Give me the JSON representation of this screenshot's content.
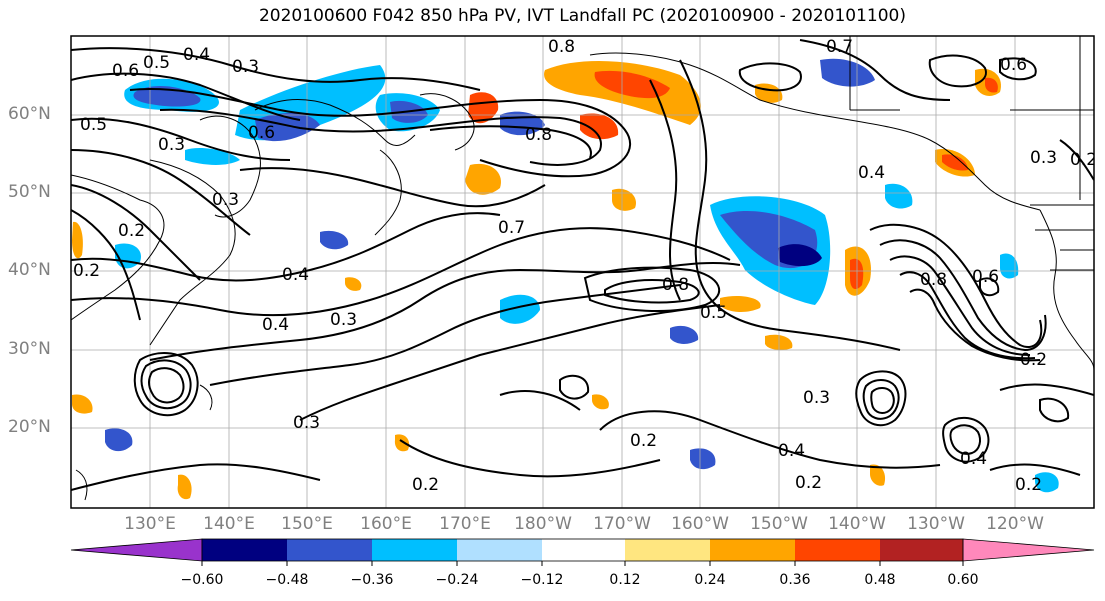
{
  "title": "2020100600 F042 850 hPa PV, IVT Landfall PC (2020100900 - 2020101100)",
  "lat_labels": [
    "60°N",
    "50°N",
    "40°N",
    "30°N",
    "20°N"
  ],
  "lon_labels": [
    "130°E",
    "140°E",
    "150°E",
    "160°E",
    "170°E",
    "180°W",
    "170°W",
    "160°W",
    "150°W",
    "140°W",
    "130°W",
    "120°W"
  ],
  "contour_labels": [
    "0.6",
    "0.5",
    "0.4",
    "0.3",
    "0.5",
    "0.3",
    "0.6",
    "0.3",
    "0.2",
    "0.2",
    "0.8",
    "0.7",
    "0.8",
    "0.7",
    "0.6",
    "0.3",
    "0.2",
    "0.4",
    "0.4",
    "0.4",
    "0.3",
    "0.8",
    "0.5",
    "0.8",
    "0.6",
    "0.2",
    "0.3",
    "0.2",
    "0.2",
    "0.3",
    "0.4",
    "0.2",
    "0.4",
    "0.2"
  ],
  "colorbar": {
    "ticks": [
      "−0.60",
      "−0.48",
      "−0.36",
      "−0.24",
      "−0.12",
      "0.12",
      "0.24",
      "0.36",
      "0.48",
      "0.60"
    ],
    "colors": [
      "#9933cc",
      "#000080",
      "#3355cc",
      "#00bfff",
      "#b0e0ff",
      "#ffffff",
      "#ffe680",
      "#ffa500",
      "#ff4500",
      "#b22222",
      "#ff88bb"
    ]
  }
}
